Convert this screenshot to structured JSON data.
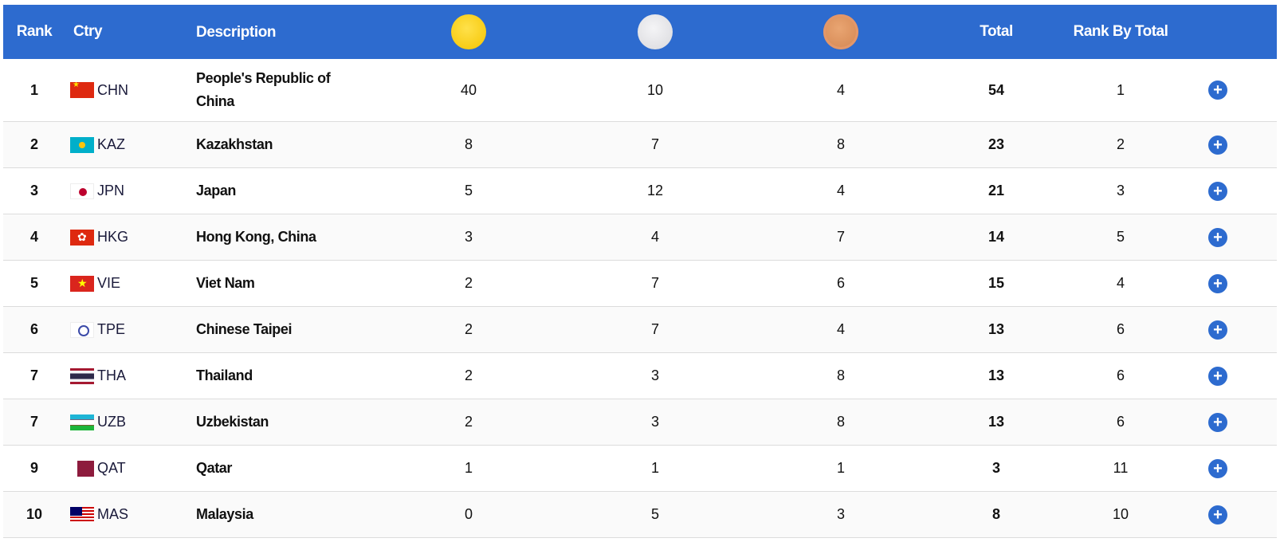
{
  "header": {
    "rank": "Rank",
    "ctry": "Ctry",
    "description": "Description",
    "gold_icon": "gold-medal-icon",
    "silver_icon": "silver-medal-icon",
    "bronze_icon": "bronze-medal-icon",
    "total": "Total",
    "rank_by_total": "Rank By Total"
  },
  "colors": {
    "header_bg": "#2d6bcf",
    "gold": "#f5c400",
    "silver": "#d9d9dd",
    "bronze": "#d2844f",
    "expand_button": "#2d6bcf"
  },
  "rows": [
    {
      "rank": "1",
      "code": "CHN",
      "flag": "f-chn",
      "description": "People's Republic of China",
      "gold": "40",
      "silver": "10",
      "bronze": "4",
      "total": "54",
      "rank_by_total": "1",
      "expand": "+"
    },
    {
      "rank": "2",
      "code": "KAZ",
      "flag": "f-kaz",
      "description": "Kazakhstan",
      "gold": "8",
      "silver": "7",
      "bronze": "8",
      "total": "23",
      "rank_by_total": "2",
      "expand": "+"
    },
    {
      "rank": "3",
      "code": "JPN",
      "flag": "f-jpn",
      "description": "Japan",
      "gold": "5",
      "silver": "12",
      "bronze": "4",
      "total": "21",
      "rank_by_total": "3",
      "expand": "+"
    },
    {
      "rank": "4",
      "code": "HKG",
      "flag": "f-hkg",
      "description": "Hong Kong, China",
      "gold": "3",
      "silver": "4",
      "bronze": "7",
      "total": "14",
      "rank_by_total": "5",
      "expand": "+"
    },
    {
      "rank": "5",
      "code": "VIE",
      "flag": "f-vie",
      "description": "Viet Nam",
      "gold": "2",
      "silver": "7",
      "bronze": "6",
      "total": "15",
      "rank_by_total": "4",
      "expand": "+"
    },
    {
      "rank": "6",
      "code": "TPE",
      "flag": "f-tpe",
      "description": "Chinese Taipei",
      "gold": "2",
      "silver": "7",
      "bronze": "4",
      "total": "13",
      "rank_by_total": "6",
      "expand": "+"
    },
    {
      "rank": "7",
      "code": "THA",
      "flag": "f-tha",
      "description": "Thailand",
      "gold": "2",
      "silver": "3",
      "bronze": "8",
      "total": "13",
      "rank_by_total": "6",
      "expand": "+"
    },
    {
      "rank": "7",
      "code": "UZB",
      "flag": "f-uzb",
      "description": "Uzbekistan",
      "gold": "2",
      "silver": "3",
      "bronze": "8",
      "total": "13",
      "rank_by_total": "6",
      "expand": "+"
    },
    {
      "rank": "9",
      "code": "QAT",
      "flag": "f-qat",
      "description": "Qatar",
      "gold": "1",
      "silver": "1",
      "bronze": "1",
      "total": "3",
      "rank_by_total": "11",
      "expand": "+"
    },
    {
      "rank": "10",
      "code": "MAS",
      "flag": "f-mas",
      "description": "Malaysia",
      "gold": "0",
      "silver": "5",
      "bronze": "3",
      "total": "8",
      "rank_by_total": "10",
      "expand": "+"
    }
  ]
}
